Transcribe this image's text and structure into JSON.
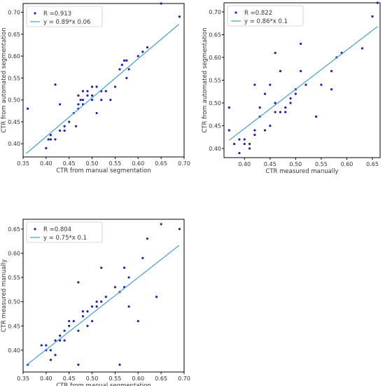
{
  "chart_data": [
    {
      "type": "scatter",
      "xlabel": "CTR from manual segmentation",
      "ylabel": "CTR from automated segmentation",
      "xlim": [
        0.35,
        0.7
      ],
      "ylim": [
        0.37,
        0.72
      ],
      "xticks": [
        "0.35",
        "0.40",
        "0.45",
        "0.50",
        "0.55",
        "0.60",
        "0.65",
        "0.70"
      ],
      "yticks": [
        "0.40",
        "0.45",
        "0.50",
        "0.55",
        "0.60",
        "0.65",
        "0.70"
      ],
      "legend_position": "top-left",
      "grid": false,
      "series": [
        {
          "name": "R =0.913",
          "kind": "points",
          "color": "#1f1fb4",
          "x": [
            0.36,
            0.4,
            0.41,
            0.405,
            0.41,
            0.42,
            0.42,
            0.43,
            0.43,
            0.44,
            0.44,
            0.45,
            0.46,
            0.465,
            0.47,
            0.47,
            0.475,
            0.48,
            0.48,
            0.49,
            0.49,
            0.5,
            0.5,
            0.51,
            0.51,
            0.52,
            0.52,
            0.53,
            0.55,
            0.56,
            0.565,
            0.57,
            0.575,
            0.575,
            0.58,
            0.6,
            0.61,
            0.62,
            0.65,
            0.69,
            0.47,
            0.48,
            0.5,
            0.54
          ],
          "y": [
            0.48,
            0.39,
            0.42,
            0.41,
            0.41,
            0.535,
            0.41,
            0.49,
            0.43,
            0.44,
            0.43,
            0.45,
            0.47,
            0.44,
            0.49,
            0.48,
            0.5,
            0.49,
            0.5,
            0.51,
            0.52,
            0.51,
            0.5,
            0.53,
            0.47,
            0.52,
            0.5,
            0.52,
            0.53,
            0.57,
            0.58,
            0.59,
            0.59,
            0.55,
            0.57,
            0.6,
            0.61,
            0.62,
            0.72,
            0.69,
            0.51,
            0.52,
            0.53,
            0.5
          ]
        },
        {
          "name": "y = 0.89*x 0.06",
          "kind": "line",
          "color": "#3fa0cf",
          "x": [
            0.357,
            0.689
          ],
          "y": [
            0.378,
            0.673
          ]
        }
      ]
    },
    {
      "type": "scatter",
      "xlabel": "CTR measured manually",
      "ylabel": "CTR from automated segmentation",
      "xlim": [
        0.36,
        0.665
      ],
      "ylim": [
        0.38,
        0.72
      ],
      "xticks": [
        "0.40",
        "0.45",
        "0.50",
        "0.55",
        "0.60",
        "0.65"
      ],
      "yticks": [
        "0.40",
        "0.45",
        "0.50",
        "0.55",
        "0.60",
        "0.65",
        "0.70"
      ],
      "legend_position": "top-left",
      "grid": false,
      "series": [
        {
          "name": "R =0.822",
          "kind": "points",
          "color": "#1f1fb4",
          "x": [
            0.37,
            0.37,
            0.38,
            0.39,
            0.39,
            0.4,
            0.4,
            0.41,
            0.41,
            0.42,
            0.42,
            0.42,
            0.43,
            0.43,
            0.44,
            0.44,
            0.45,
            0.45,
            0.46,
            0.46,
            0.46,
            0.47,
            0.47,
            0.48,
            0.48,
            0.49,
            0.49,
            0.5,
            0.5,
            0.51,
            0.51,
            0.52,
            0.54,
            0.55,
            0.57,
            0.57,
            0.58,
            0.59,
            0.63,
            0.65,
            0.66
          ],
          "y": [
            0.49,
            0.44,
            0.41,
            0.39,
            0.42,
            0.41,
            0.42,
            0.41,
            0.4,
            0.43,
            0.54,
            0.44,
            0.47,
            0.49,
            0.44,
            0.52,
            0.45,
            0.54,
            0.61,
            0.48,
            0.5,
            0.48,
            0.57,
            0.49,
            0.48,
            0.51,
            0.5,
            0.52,
            0.53,
            0.63,
            0.57,
            0.54,
            0.47,
            0.54,
            0.57,
            0.53,
            0.6,
            0.61,
            0.62,
            0.69,
            0.72
          ]
        },
        {
          "name": "y = 0.86*x 0.1",
          "kind": "line",
          "color": "#3fa0cf",
          "x": [
            0.37,
            0.66
          ],
          "y": [
            0.418,
            0.668
          ]
        }
      ]
    },
    {
      "type": "scatter",
      "xlabel": "CTR from manual segmentation",
      "ylabel": "CTR measured manually",
      "xlim": [
        0.35,
        0.7
      ],
      "ylim": [
        0.355,
        0.67
      ],
      "xticks": [
        "0.35",
        "0.40",
        "0.45",
        "0.50",
        "0.55",
        "0.60",
        "0.65",
        "0.70"
      ],
      "yticks": [
        "0.40",
        "0.45",
        "0.50",
        "0.55",
        "0.60",
        "0.65"
      ],
      "legend_position": "top-left",
      "grid": false,
      "series": [
        {
          "name": "R =0.804",
          "kind": "points",
          "color": "#1f1fb4",
          "x": [
            0.36,
            0.39,
            0.4,
            0.4,
            0.41,
            0.41,
            0.42,
            0.42,
            0.43,
            0.43,
            0.44,
            0.44,
            0.45,
            0.45,
            0.46,
            0.47,
            0.47,
            0.48,
            0.48,
            0.49,
            0.49,
            0.5,
            0.5,
            0.51,
            0.51,
            0.52,
            0.52,
            0.53,
            0.55,
            0.56,
            0.57,
            0.57,
            0.58,
            0.58,
            0.6,
            0.61,
            0.62,
            0.65,
            0.69,
            0.47,
            0.56,
            0.64
          ],
          "y": [
            0.37,
            0.41,
            0.4,
            0.41,
            0.4,
            0.38,
            0.42,
            0.39,
            0.42,
            0.43,
            0.42,
            0.44,
            0.45,
            0.46,
            0.46,
            0.54,
            0.37,
            0.47,
            0.48,
            0.45,
            0.48,
            0.46,
            0.49,
            0.5,
            0.49,
            0.57,
            0.5,
            0.51,
            0.53,
            0.37,
            0.57,
            0.53,
            0.49,
            0.55,
            0.46,
            0.59,
            0.63,
            0.66,
            0.65,
            0.44,
            0.52,
            0.51
          ]
        },
        {
          "name": "y = 0.75*x 0.1",
          "kind": "line",
          "color": "#3fa0cf",
          "x": [
            0.357,
            0.689
          ],
          "y": [
            0.369,
            0.616
          ]
        }
      ]
    }
  ]
}
